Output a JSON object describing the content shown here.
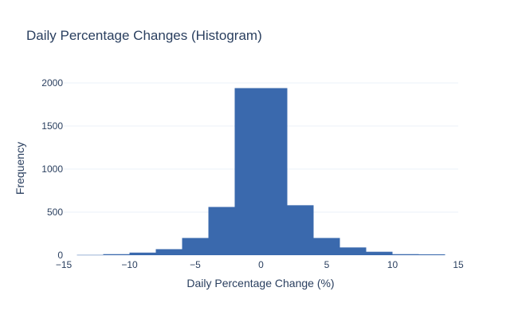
{
  "chart_data": {
    "type": "bar",
    "title": "Daily Percentage Changes (Histogram)",
    "xlabel": "Daily Percentage Change (%)",
    "ylabel": "Frequency",
    "xlim": [
      -15,
      15
    ],
    "ylim": [
      0,
      2100
    ],
    "x_ticks": [
      -15,
      -10,
      -5,
      0,
      5,
      10,
      15
    ],
    "x_tick_labels": [
      "−15",
      "−10",
      "−5",
      "0",
      "5",
      "10",
      "15"
    ],
    "y_ticks": [
      0,
      500,
      1000,
      1500,
      2000
    ],
    "y_tick_labels": [
      "0",
      "500",
      "1000",
      "1500",
      "2000"
    ],
    "bin_width": 2,
    "bins": [
      {
        "x0": -14,
        "x1": -12,
        "value": 3
      },
      {
        "x0": -12,
        "x1": -10,
        "value": 12
      },
      {
        "x0": -10,
        "x1": -8,
        "value": 30
      },
      {
        "x0": -8,
        "x1": -6,
        "value": 70
      },
      {
        "x0": -6,
        "x1": -4,
        "value": 200
      },
      {
        "x0": -4,
        "x1": -2,
        "value": 560
      },
      {
        "x0": -2,
        "x1": 0,
        "value": 1940
      },
      {
        "x0": 0,
        "x1": 2,
        "value": 1940
      },
      {
        "x0": 2,
        "x1": 4,
        "value": 580
      },
      {
        "x0": 4,
        "x1": 6,
        "value": 200
      },
      {
        "x0": 6,
        "x1": 8,
        "value": 90
      },
      {
        "x0": 8,
        "x1": 10,
        "value": 40
      },
      {
        "x0": 10,
        "x1": 12,
        "value": 12
      },
      {
        "x0": 12,
        "x1": 14,
        "value": 10
      }
    ],
    "bar_color": "#3a69ad",
    "grid": true
  }
}
